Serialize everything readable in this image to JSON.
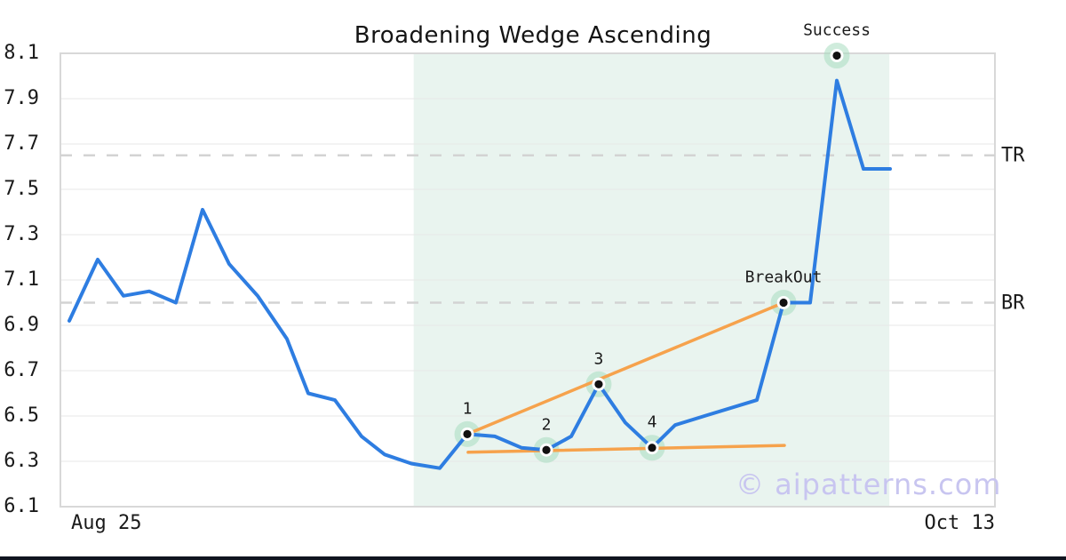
{
  "title": "Broadening Wedge Ascending",
  "watermark": "© aipatterns.com",
  "x_axis": {
    "start_label": "Aug 25",
    "end_label": "Oct 13"
  },
  "y_axis": {
    "ticks": [
      8.1,
      7.9,
      7.7,
      7.5,
      7.3,
      7.1,
      6.9,
      6.7,
      6.5,
      6.3,
      6.1
    ]
  },
  "chart_data": {
    "type": "line",
    "title": "Broadening Wedge Ascending",
    "xlabel": "",
    "ylabel": "",
    "ylim": [
      6.1,
      8.1
    ],
    "grid": "horizontal",
    "x_unit": "percent_of_plot_width",
    "x_range_labels": [
      "Aug 25",
      "Oct 13"
    ],
    "series": [
      {
        "name": "price",
        "x_pct": [
          0.95,
          3.99,
          6.75,
          9.51,
          12.36,
          15.21,
          18.06,
          21.1,
          24.24,
          26.52,
          29.37,
          32.22,
          34.7,
          37.55,
          40.59,
          43.54,
          46.48,
          49.33,
          52.0,
          54.66,
          57.6,
          60.46,
          63.31,
          65.78,
          68.92,
          74.52,
          77.38,
          80.23,
          83.08,
          85.93,
          88.78
        ],
        "values": [
          6.92,
          7.19,
          7.03,
          7.05,
          7.0,
          7.41,
          7.17,
          7.03,
          6.84,
          6.6,
          6.57,
          6.41,
          6.33,
          6.29,
          6.27,
          6.42,
          6.41,
          6.36,
          6.35,
          6.41,
          6.64,
          6.47,
          6.36,
          6.46,
          6.5,
          6.57,
          7.0,
          7.0,
          7.98,
          7.59,
          7.59
        ]
      }
    ],
    "pattern_points": [
      {
        "label": "1",
        "x_pct": 43.54,
        "value": 6.42
      },
      {
        "label": "2",
        "x_pct": 52.0,
        "value": 6.35
      },
      {
        "label": "3",
        "x_pct": 57.6,
        "value": 6.64
      },
      {
        "label": "4",
        "x_pct": 63.31,
        "value": 6.36
      },
      {
        "label": "BreakOut",
        "x_pct": 77.38,
        "value": 7.0
      },
      {
        "label": "Success",
        "x_pct": 83.08,
        "value": 8.09
      }
    ],
    "trendlines": [
      {
        "name": "upper-resistance",
        "x1_pct": 43.54,
        "y1": 6.42,
        "x2_pct": 77.38,
        "y2": 7.0
      },
      {
        "name": "lower-support",
        "x1_pct": 43.63,
        "y1": 6.34,
        "x2_pct": 77.47,
        "y2": 6.37
      }
    ],
    "hlines": [
      {
        "label": "TR",
        "value": 7.65,
        "style": "dashed"
      },
      {
        "label": "BR",
        "value": 7.0,
        "style": "dashed"
      }
    ],
    "shaded_region": {
      "x1_pct": 37.8,
      "x2_pct": 88.7
    },
    "legend": "none"
  },
  "colors": {
    "price_line": "#2e7de1",
    "trendline": "#f6a24c",
    "marker_halo": "#a8dcc0",
    "marker_dot": "#111111",
    "dashed_line": "#d3d3d3",
    "gridline": "#e7e7e7",
    "plot_border": "#d8d8d8",
    "shade": "#e9f4ef",
    "watermark": "#c8c5f0",
    "bottom_bar": "#10141f"
  }
}
